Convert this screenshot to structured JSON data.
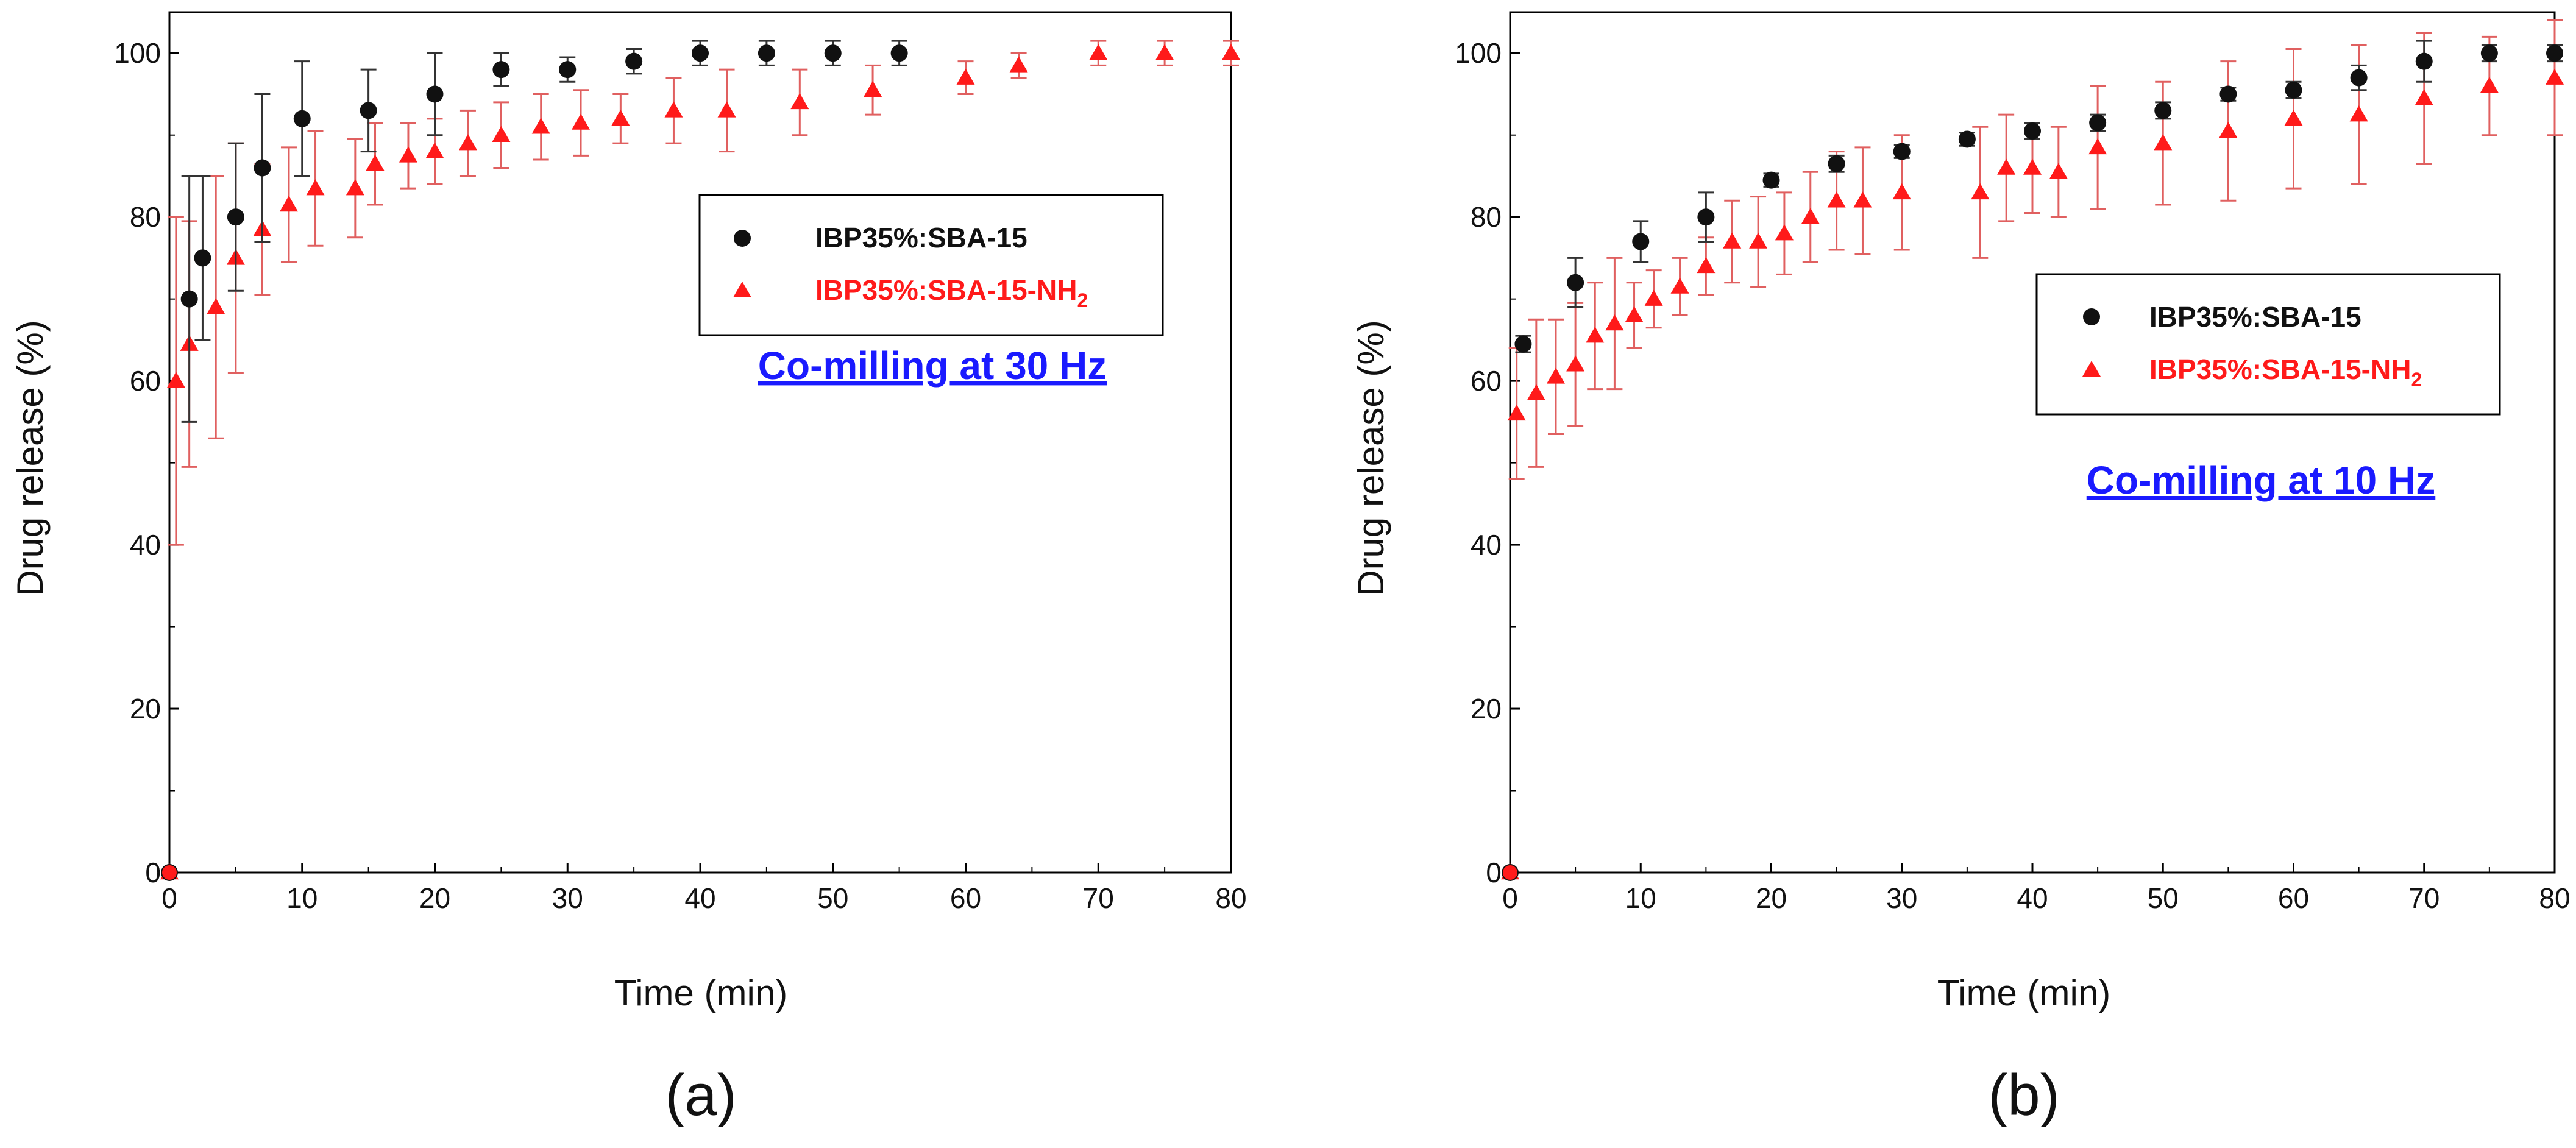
{
  "colors": {
    "series1": "#111111",
    "series2": "#ff1a1a",
    "errbar2": "#e06060",
    "annotation": "#1a1aff"
  },
  "chart_data": [
    {
      "type": "scatter",
      "panel_label": "(a)",
      "xlabel": "Time (min)",
      "ylabel": "Drug release (%)",
      "xlim": [
        0,
        80
      ],
      "ylim": [
        0,
        105
      ],
      "xticks": [
        0,
        10,
        20,
        30,
        40,
        50,
        60,
        70,
        80
      ],
      "yticks": [
        0,
        20,
        40,
        60,
        80,
        100
      ],
      "annotation": "Co-milling at 30 Hz",
      "legend": {
        "placement": "upper-right",
        "entries": [
          {
            "series": 0,
            "name": "IBP35%:SBA-15",
            "sub": ""
          },
          {
            "series": 1,
            "name": "IBP35%:SBA-15-NH",
            "sub": "2"
          }
        ]
      },
      "series": [
        {
          "name": "IBP35%:SBA-15",
          "marker": "circle",
          "x": [
            0,
            1.5,
            2.5,
            5,
            7,
            10,
            15,
            20,
            25,
            30,
            35,
            40,
            45,
            50,
            55
          ],
          "y": [
            0,
            70,
            75,
            80,
            86,
            92,
            93,
            95,
            98,
            98,
            99,
            100,
            100,
            100,
            100
          ],
          "err": [
            0,
            15,
            10,
            9,
            9,
            7,
            5,
            5,
            2,
            1.5,
            1.5,
            1.5,
            1.5,
            1.5,
            1.5
          ]
        },
        {
          "name": "IBP35%:SBA-15-NH2",
          "marker": "triangle",
          "x": [
            0,
            0.5,
            1.5,
            3.5,
            5,
            7,
            9,
            11,
            14,
            15.5,
            18,
            20,
            22.5,
            25,
            28,
            31,
            34,
            38,
            42,
            47.5,
            53,
            60,
            64,
            70,
            75,
            80
          ],
          "y": [
            0,
            60,
            64.5,
            69,
            75,
            78.5,
            81.5,
            83.5,
            83.5,
            86.5,
            87.5,
            88,
            89,
            90,
            91,
            91.5,
            92,
            93,
            93,
            94,
            95.5,
            97,
            98.5,
            100,
            100,
            100
          ],
          "err": [
            0,
            20,
            15,
            16,
            14,
            8,
            7,
            7,
            6,
            5,
            4,
            4,
            4,
            4,
            4,
            4,
            3,
            4,
            5,
            4,
            3,
            2,
            1.5,
            1.5,
            1.5,
            1.5
          ]
        }
      ]
    },
    {
      "type": "scatter",
      "panel_label": "(b)",
      "xlabel": "Time (min)",
      "ylabel": "Drug release (%)",
      "xlim": [
        0,
        80
      ],
      "ylim": [
        0,
        105
      ],
      "xticks": [
        0,
        10,
        20,
        30,
        40,
        50,
        60,
        70,
        80
      ],
      "yticks": [
        0,
        20,
        40,
        60,
        80,
        100
      ],
      "annotation": "Co-milling at 10 Hz",
      "legend": {
        "placement": "center-right",
        "entries": [
          {
            "series": 0,
            "name": "IBP35%:SBA-15",
            "sub": ""
          },
          {
            "series": 1,
            "name": "IBP35%:SBA-15-NH",
            "sub": "2"
          }
        ]
      },
      "series": [
        {
          "name": "IBP35%:SBA-15",
          "marker": "circle",
          "x": [
            0,
            1,
            5,
            10,
            15,
            20,
            25,
            30,
            35,
            40,
            45,
            50,
            55,
            60,
            65,
            70,
            75,
            80
          ],
          "y": [
            0,
            64.5,
            72,
            77,
            80,
            84.5,
            86.5,
            88,
            89.5,
            90.5,
            91.5,
            93,
            95,
            95.5,
            97,
            99,
            100,
            100
          ],
          "err": [
            0,
            1,
            3,
            2.5,
            3,
            0.8,
            1,
            0.8,
            0.8,
            1,
            1,
            1,
            0.8,
            1,
            1.5,
            2.5,
            1,
            1
          ]
        },
        {
          "name": "IBP35%:SBA-15-NH2",
          "marker": "triangle",
          "x": [
            0,
            0.5,
            2,
            3.5,
            5,
            6.5,
            8,
            9.5,
            11,
            13,
            15,
            17,
            19,
            21,
            23,
            25,
            27,
            30,
            36,
            38,
            40,
            42,
            45,
            50,
            55,
            60,
            65,
            70,
            75,
            80
          ],
          "y": [
            0,
            56,
            58.5,
            60.5,
            62,
            65.5,
            67,
            68,
            70,
            71.5,
            74,
            77,
            77,
            78,
            80,
            82,
            82,
            83,
            83,
            86,
            86,
            85.5,
            88.5,
            89,
            90.5,
            92,
            92.5,
            94.5,
            96,
            97
          ],
          "err": [
            0,
            8,
            9,
            7,
            7.5,
            6.5,
            8,
            4,
            3.5,
            3.5,
            3.5,
            5,
            5.5,
            5,
            5.5,
            6,
            6.5,
            7,
            8,
            6.5,
            5.5,
            5.5,
            7.5,
            7.5,
            8.5,
            8.5,
            8.5,
            8,
            6,
            7
          ]
        }
      ]
    }
  ]
}
